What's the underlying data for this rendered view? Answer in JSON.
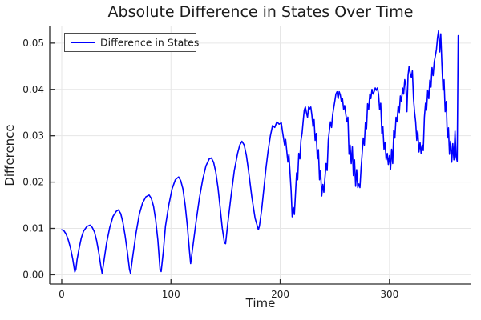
{
  "colors": {
    "line": "#0000FF",
    "grid": "#E6E6E6",
    "axis": "#2A2A2A",
    "text": "#1C1C1C",
    "legend_border": "#4D4D4D",
    "background": "#FFFFFF"
  },
  "chart_data": {
    "type": "line",
    "title": "Absolute Difference in States Over Time",
    "xlabel": "Time",
    "ylabel": "Difference",
    "xlim": [
      -11,
      375
    ],
    "ylim": [
      -0.002,
      0.0536
    ],
    "grid": true,
    "x_ticks": [
      0,
      100,
      200,
      300
    ],
    "x_tick_labels": [
      "0",
      "100",
      "200",
      "300"
    ],
    "y_ticks": [
      0,
      0.01,
      0.02,
      0.03,
      0.04,
      0.05
    ],
    "y_tick_labels": [
      "0.00",
      "0.01",
      "0.02",
      "0.03",
      "0.04",
      "0.05"
    ],
    "legend": {
      "position": "top-left",
      "entries": [
        "Difference in States"
      ]
    },
    "series": [
      {
        "name": "Difference in States",
        "color": "#0000FF",
        "points": [
          [
            0,
            0.0097
          ],
          [
            2,
            0.0095
          ],
          [
            4,
            0.0088
          ],
          [
            6,
            0.0075
          ],
          [
            8,
            0.0058
          ],
          [
            10,
            0.0035
          ],
          [
            12,
            0.0006
          ],
          [
            13,
            0.0012
          ],
          [
            14,
            0.0032
          ],
          [
            16,
            0.0058
          ],
          [
            18,
            0.008
          ],
          [
            20,
            0.0094
          ],
          [
            23,
            0.0104
          ],
          [
            26,
            0.0107
          ],
          [
            28,
            0.0102
          ],
          [
            30,
            0.0092
          ],
          [
            32,
            0.0073
          ],
          [
            34,
            0.0047
          ],
          [
            36,
            0.0016
          ],
          [
            37,
            0.0003
          ],
          [
            39,
            0.0035
          ],
          [
            41,
            0.0068
          ],
          [
            44,
            0.0102
          ],
          [
            47,
            0.0126
          ],
          [
            50,
            0.0137
          ],
          [
            52,
            0.014
          ],
          [
            54,
            0.0132
          ],
          [
            56,
            0.0113
          ],
          [
            58,
            0.0085
          ],
          [
            60,
            0.005
          ],
          [
            62,
            0.0012
          ],
          [
            63,
            0.0003
          ],
          [
            65,
            0.004
          ],
          [
            68,
            0.009
          ],
          [
            71,
            0.013
          ],
          [
            74,
            0.0155
          ],
          [
            77,
            0.0168
          ],
          [
            80,
            0.0172
          ],
          [
            82,
            0.0165
          ],
          [
            84,
            0.0148
          ],
          [
            86,
            0.0118
          ],
          [
            88,
            0.0075
          ],
          [
            90,
            0.0012
          ],
          [
            91,
            0.0007
          ],
          [
            93,
            0.005
          ],
          [
            95,
            0.0105
          ],
          [
            98,
            0.015
          ],
          [
            101,
            0.0185
          ],
          [
            104,
            0.0205
          ],
          [
            107,
            0.0211
          ],
          [
            109,
            0.0203
          ],
          [
            111,
            0.0185
          ],
          [
            113,
            0.015
          ],
          [
            115,
            0.0105
          ],
          [
            117,
            0.005
          ],
          [
            118,
            0.0024
          ],
          [
            120,
            0.006
          ],
          [
            123,
            0.0115
          ],
          [
            126,
            0.0165
          ],
          [
            129,
            0.0205
          ],
          [
            132,
            0.0235
          ],
          [
            135,
            0.025
          ],
          [
            137,
            0.0252
          ],
          [
            139,
            0.0243
          ],
          [
            141,
            0.0222
          ],
          [
            143,
            0.0188
          ],
          [
            145,
            0.0145
          ],
          [
            147,
            0.01
          ],
          [
            149,
            0.0069
          ],
          [
            150,
            0.0067
          ],
          [
            152,
            0.011
          ],
          [
            155,
            0.017
          ],
          [
            158,
            0.0225
          ],
          [
            161,
            0.0262
          ],
          [
            163,
            0.028
          ],
          [
            165,
            0.0288
          ],
          [
            167,
            0.028
          ],
          [
            169,
            0.0258
          ],
          [
            171,
            0.0225
          ],
          [
            174,
            0.0168
          ],
          [
            177,
            0.0122
          ],
          [
            180,
            0.0097
          ],
          [
            181,
            0.0105
          ],
          [
            183,
            0.014
          ],
          [
            185,
            0.0185
          ],
          [
            187,
            0.023
          ],
          [
            189,
            0.0268
          ],
          [
            191,
            0.03
          ],
          [
            193,
            0.0322
          ],
          [
            195,
            0.0318
          ],
          [
            197,
            0.033
          ],
          [
            199,
            0.0325
          ],
          [
            201,
            0.0328
          ],
          [
            202,
            0.031
          ],
          [
            204,
            0.028
          ],
          [
            205,
            0.0292
          ],
          [
            207,
            0.0243
          ],
          [
            208,
            0.026
          ],
          [
            210,
            0.018
          ],
          [
            211,
            0.0125
          ],
          [
            212,
            0.0145
          ],
          [
            213,
            0.013
          ],
          [
            214,
            0.0175
          ],
          [
            215,
            0.022
          ],
          [
            216,
            0.0205
          ],
          [
            217,
            0.0262
          ],
          [
            218,
            0.025
          ],
          [
            219,
            0.029
          ],
          [
            220,
            0.0305
          ],
          [
            221,
            0.033
          ],
          [
            222,
            0.0355
          ],
          [
            223,
            0.0362
          ],
          [
            224,
            0.035
          ],
          [
            225,
            0.034
          ],
          [
            226,
            0.0362
          ],
          [
            227,
            0.0358
          ],
          [
            228,
            0.0362
          ],
          [
            229,
            0.0345
          ],
          [
            230,
            0.032
          ],
          [
            231,
            0.0335
          ],
          [
            232,
            0.029
          ],
          [
            233,
            0.0305
          ],
          [
            234,
            0.025
          ],
          [
            235,
            0.027
          ],
          [
            236,
            0.0205
          ],
          [
            237,
            0.0225
          ],
          [
            238,
            0.017
          ],
          [
            239,
            0.0195
          ],
          [
            240,
            0.0178
          ],
          [
            241,
            0.021
          ],
          [
            242,
            0.024
          ],
          [
            243,
            0.0225
          ],
          [
            244,
            0.029
          ],
          [
            245,
            0.031
          ],
          [
            246,
            0.033
          ],
          [
            247,
            0.0318
          ],
          [
            248,
            0.0345
          ],
          [
            249,
            0.036
          ],
          [
            250,
            0.0375
          ],
          [
            251,
            0.039
          ],
          [
            252,
            0.0395
          ],
          [
            253,
            0.038
          ],
          [
            254,
            0.0395
          ],
          [
            255,
            0.0388
          ],
          [
            256,
            0.0374
          ],
          [
            257,
            0.038
          ],
          [
            258,
            0.0357
          ],
          [
            259,
            0.0365
          ],
          [
            260,
            0.0347
          ],
          [
            261,
            0.033
          ],
          [
            262,
            0.034
          ],
          [
            263,
            0.026
          ],
          [
            264,
            0.028
          ],
          [
            265,
            0.024
          ],
          [
            266,
            0.0276
          ],
          [
            267,
            0.0214
          ],
          [
            268,
            0.0248
          ],
          [
            269,
            0.0191
          ],
          [
            270,
            0.0227
          ],
          [
            271,
            0.0188
          ],
          [
            272,
            0.0196
          ],
          [
            273,
            0.0188
          ],
          [
            274,
            0.023
          ],
          [
            275,
            0.026
          ],
          [
            276,
            0.0295
          ],
          [
            277,
            0.028
          ],
          [
            278,
            0.0329
          ],
          [
            279,
            0.0315
          ],
          [
            280,
            0.0369
          ],
          [
            281,
            0.0357
          ],
          [
            282,
            0.039
          ],
          [
            283,
            0.038
          ],
          [
            284,
            0.04
          ],
          [
            285,
            0.039
          ],
          [
            286,
            0.0395
          ],
          [
            287,
            0.0403
          ],
          [
            288,
            0.0398
          ],
          [
            289,
            0.0403
          ],
          [
            290,
            0.039
          ],
          [
            291,
            0.0357
          ],
          [
            292,
            0.037
          ],
          [
            293,
            0.0305
          ],
          [
            294,
            0.032
          ],
          [
            295,
            0.0271
          ],
          [
            296,
            0.0285
          ],
          [
            297,
            0.0248
          ],
          [
            298,
            0.0262
          ],
          [
            299,
            0.0238
          ],
          [
            300,
            0.0257
          ],
          [
            301,
            0.0228
          ],
          [
            302,
            0.0271
          ],
          [
            303,
            0.024
          ],
          [
            304,
            0.0312
          ],
          [
            305,
            0.0295
          ],
          [
            306,
            0.034
          ],
          [
            307,
            0.033
          ],
          [
            308,
            0.0364
          ],
          [
            309,
            0.035
          ],
          [
            310,
            0.0386
          ],
          [
            311,
            0.0374
          ],
          [
            312,
            0.0403
          ],
          [
            313,
            0.039
          ],
          [
            314,
            0.0421
          ],
          [
            315,
            0.041
          ],
          [
            316,
            0.0352
          ],
          [
            317,
            0.043
          ],
          [
            318,
            0.045
          ],
          [
            319,
            0.0435
          ],
          [
            320,
            0.0426
          ],
          [
            321,
            0.044
          ],
          [
            322,
            0.038
          ],
          [
            323,
            0.0352
          ],
          [
            324,
            0.033
          ],
          [
            325,
            0.029
          ],
          [
            326,
            0.031
          ],
          [
            327,
            0.0265
          ],
          [
            328,
            0.0285
          ],
          [
            329,
            0.0262
          ],
          [
            330,
            0.028
          ],
          [
            331,
            0.0268
          ],
          [
            332,
            0.034
          ],
          [
            333,
            0.037
          ],
          [
            334,
            0.0355
          ],
          [
            335,
            0.0398
          ],
          [
            336,
            0.038
          ],
          [
            337,
            0.042
          ],
          [
            338,
            0.0405
          ],
          [
            339,
            0.0447
          ],
          [
            340,
            0.043
          ],
          [
            341,
            0.046
          ],
          [
            342,
            0.0472
          ],
          [
            343,
            0.0486
          ],
          [
            344,
            0.0512
          ],
          [
            345,
            0.0527
          ],
          [
            346,
            0.0481
          ],
          [
            347,
            0.052
          ],
          [
            348,
            0.0455
          ],
          [
            349,
            0.0398
          ],
          [
            350,
            0.0421
          ],
          [
            351,
            0.0352
          ],
          [
            352,
            0.0374
          ],
          [
            353,
            0.0295
          ],
          [
            354,
            0.0317
          ],
          [
            355,
            0.026
          ],
          [
            356,
            0.0288
          ],
          [
            357,
            0.0243
          ],
          [
            358,
            0.0283
          ],
          [
            359,
            0.0248
          ],
          [
            360,
            0.031
          ],
          [
            361,
            0.0255
          ],
          [
            362,
            0.0245
          ],
          [
            363,
            0.0516
          ]
        ]
      }
    ]
  }
}
